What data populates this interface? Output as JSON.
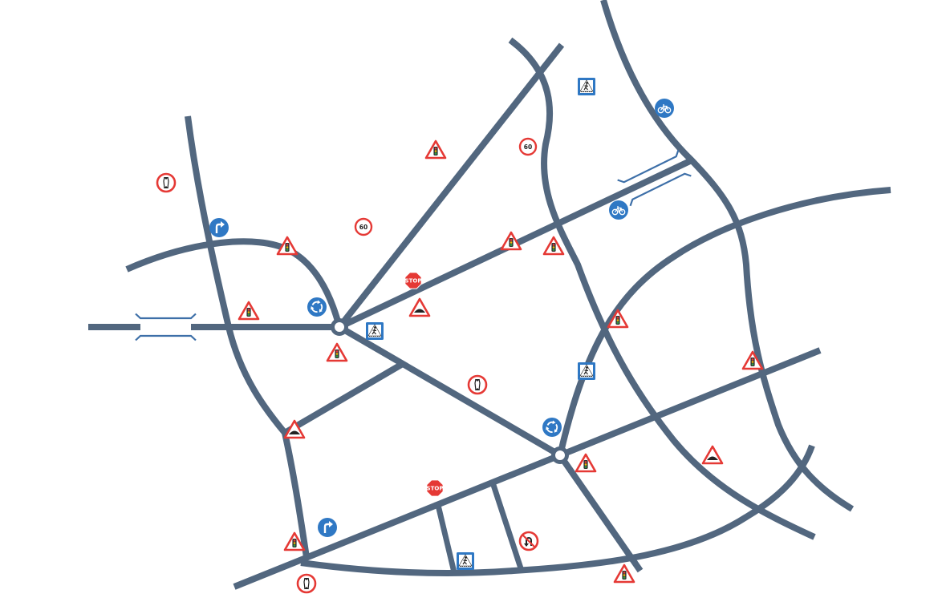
{
  "colors": {
    "road": "#52677f",
    "bridge": "#3d6fa8",
    "sign_red": "#e53935",
    "sign_blue": "#2f78c4",
    "sign_white": "#ffffff"
  },
  "signs": {
    "speed_limit_value": "60",
    "stop_text": "STOP"
  },
  "legend_items": [
    {
      "name": "traffic-signals-warning",
      "icon": "traffic-light-triangle"
    },
    {
      "name": "speed-bump-warning",
      "icon": "hump-triangle"
    },
    {
      "name": "stop-sign",
      "icon": "octagon"
    },
    {
      "name": "speed-limit",
      "icon": "red-circle"
    },
    {
      "name": "no-u-turn",
      "icon": "no-u-turn"
    },
    {
      "name": "roundabout",
      "icon": "blue-circle-roundabout"
    },
    {
      "name": "turn-right",
      "icon": "blue-circle-arrow"
    },
    {
      "name": "cycle-route",
      "icon": "blue-circle-bicycle"
    },
    {
      "name": "pedestrian-crossing",
      "icon": "blue-square-pedestrian"
    },
    {
      "name": "narrow-road",
      "icon": "red-circle-narrow"
    }
  ]
}
